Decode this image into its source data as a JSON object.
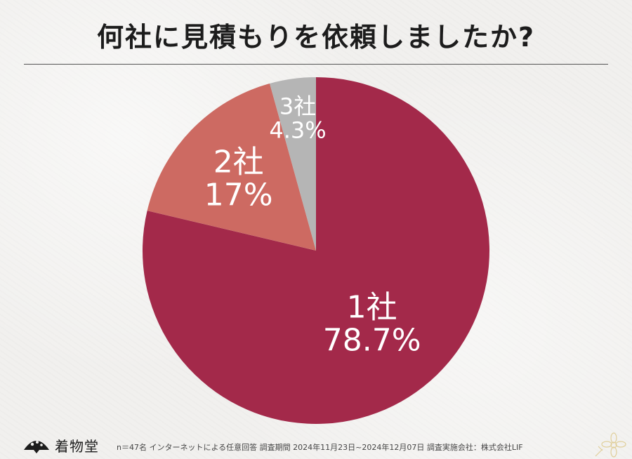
{
  "title": "何社に見積もりを依頼しましたか?",
  "chart_data": {
    "type": "pie",
    "title": "何社に見積もりを依頼しましたか?",
    "slices": [
      {
        "label": "1社",
        "value": 78.7,
        "display": "78.7%",
        "color": "#a3294a"
      },
      {
        "label": "2社",
        "value": 17,
        "display": "17%",
        "color": "#cd6a62"
      },
      {
        "label": "3社",
        "value": 4.3,
        "display": "4.3%",
        "color": "#b5b5b5"
      }
    ],
    "start": "top",
    "direction": "clockwise"
  },
  "footer": {
    "brand": "着物堂",
    "note": "n＝47名 インターネットによる任意回答 調査期間 2024年11月23日~2024年12月07日 調査実施会社：株式会社LIF"
  },
  "icons": {
    "logo": "fan-logo-icon",
    "corner": "flower-ornament-icon"
  }
}
